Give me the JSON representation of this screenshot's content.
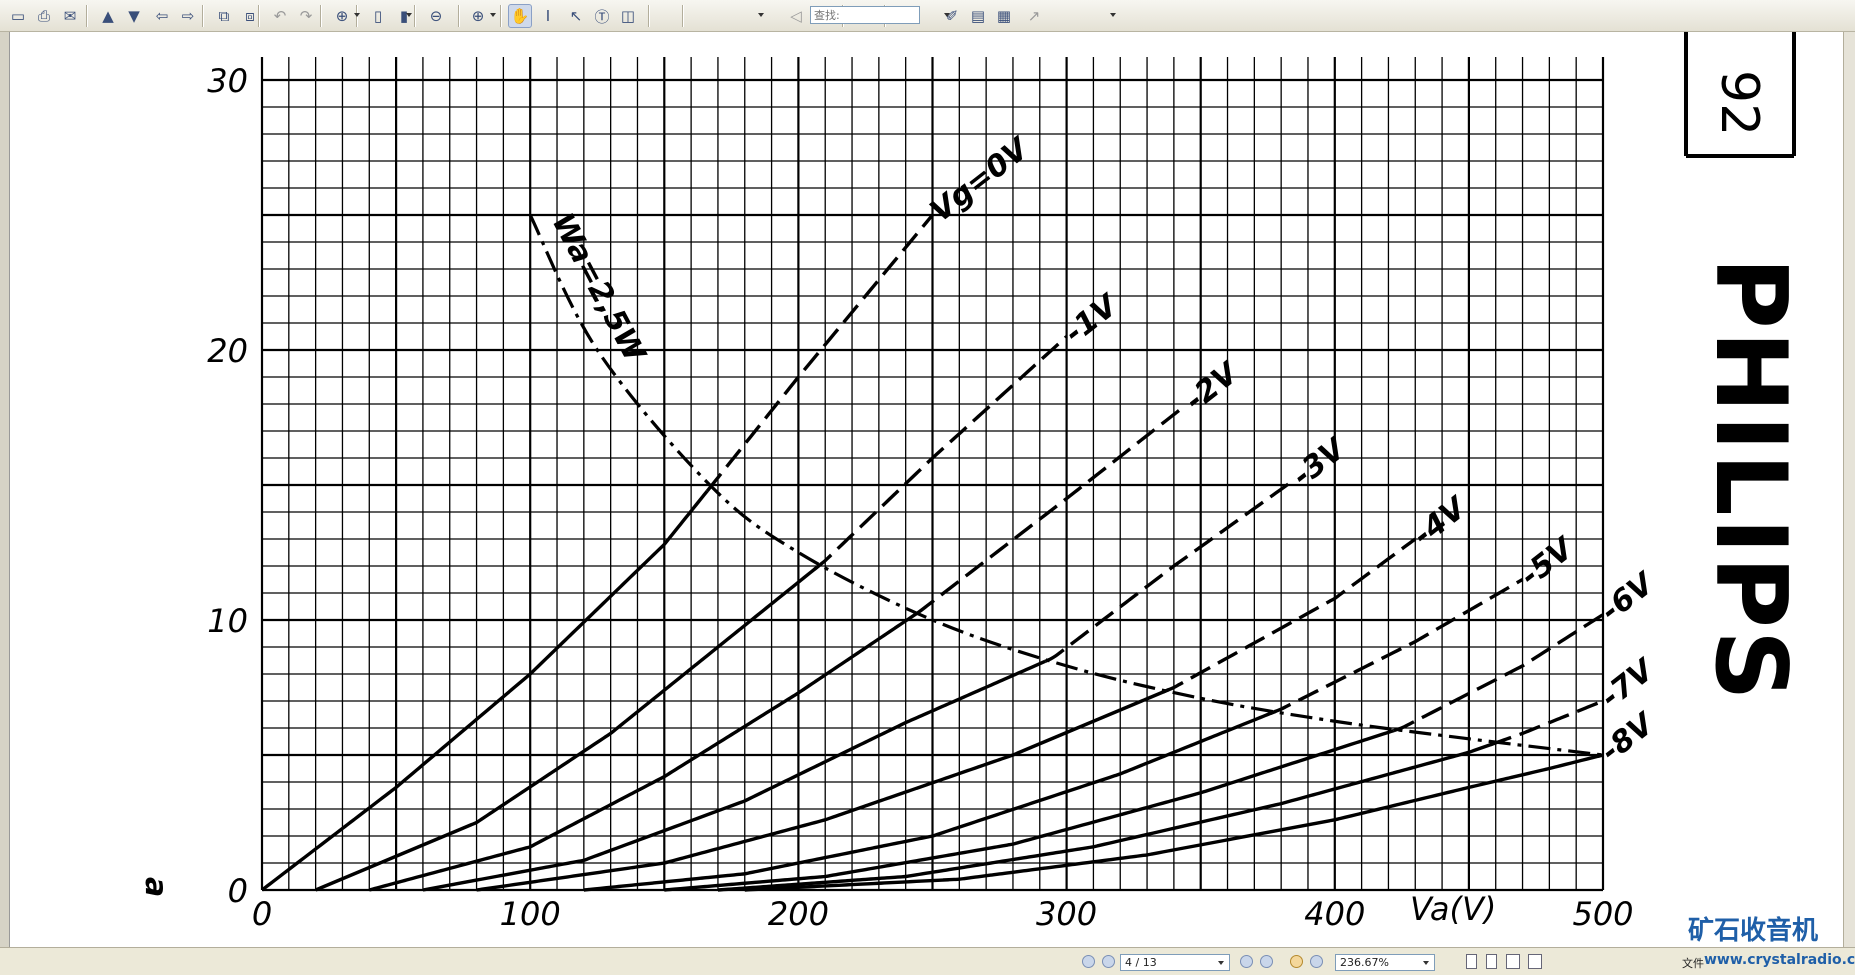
{
  "toolbar": {
    "search_placeholder": "查找:",
    "icons": [
      "save-icon",
      "print-icon",
      "email-icon",
      "page-up-icon",
      "page-down-icon",
      "back-icon",
      "forward-icon",
      "insert-pages-icon",
      "extract-pages-icon",
      "undo-icon",
      "redo-icon",
      "zoom-in-icon",
      "fit-page-icon",
      "fit-width-icon",
      "zoom-out-icon",
      "zoom-plus-icon",
      "hand-tool-icon",
      "select-text-icon",
      "select-image-icon",
      "text-box-icon",
      "snapshot-icon",
      "find-previous-icon",
      "find-next-icon",
      "search-icon",
      "comment-icon",
      "highlight-icon",
      "pencil-icon",
      "note-icon",
      "stamp-icon",
      "arrow-icon"
    ]
  },
  "statusbar": {
    "page": "4 / 13",
    "zoom": "236.67%",
    "left_text": "文件"
  },
  "watermark": {
    "name": "矿石收音机",
    "url": "www.crystalradio.cn",
    "color": "#1f5fa8"
  },
  "document": {
    "page_number": "92",
    "brand": "PHILIPS",
    "colors": {
      "ink": "#000000",
      "paper": "#ffffff"
    }
  },
  "chart_data": {
    "type": "line",
    "x_ticks": [
      "0",
      "100",
      "200",
      "300",
      "400",
      "500"
    ],
    "y_ticks": [
      "0",
      "10",
      "20",
      "30"
    ],
    "xlabel": "Va(V)",
    "ylabel": "a",
    "xlim": [
      0,
      500
    ],
    "ylim": [
      0,
      30
    ],
    "grid": true,
    "curve_style": "solid below power limit, dashed above",
    "series": [
      {
        "name": "Vg=0V",
        "x": [
          0,
          50,
          100,
          150,
          167,
          200,
          250
        ],
        "y": [
          0,
          3.8,
          8.0,
          12.8,
          14.9,
          19.0,
          25.0
        ]
      },
      {
        "name": "-1V",
        "x": [
          20,
          80,
          130,
          180,
          210,
          250,
          300
        ],
        "y": [
          0,
          2.5,
          5.8,
          9.8,
          12.2,
          16.0,
          20.5
        ]
      },
      {
        "name": "-2V",
        "x": [
          40,
          100,
          150,
          200,
          245,
          300,
          345
        ],
        "y": [
          0,
          1.6,
          4.2,
          7.3,
          10.3,
          14.5,
          18.0
        ]
      },
      {
        "name": "-3V",
        "x": [
          60,
          120,
          180,
          240,
          295,
          340,
          385
        ],
        "y": [
          0,
          1.1,
          3.3,
          6.2,
          8.6,
          12.0,
          15.2
        ]
      },
      {
        "name": "-4V",
        "x": [
          80,
          150,
          210,
          280,
          340,
          400,
          430
        ],
        "y": [
          0,
          1.0,
          2.6,
          5.0,
          7.5,
          10.8,
          13.0
        ]
      },
      {
        "name": "-5V",
        "x": [
          120,
          180,
          250,
          320,
          380,
          430,
          470
        ],
        "y": [
          0,
          0.6,
          2.0,
          4.3,
          6.7,
          9.2,
          11.5
        ]
      },
      {
        "name": "-6V",
        "x": [
          150,
          210,
          280,
          350,
          425,
          470,
          500
        ],
        "y": [
          0,
          0.5,
          1.7,
          3.6,
          6.0,
          8.3,
          10.2
        ]
      },
      {
        "name": "-7V",
        "x": [
          170,
          240,
          310,
          380,
          450,
          470,
          500
        ],
        "y": [
          0,
          0.5,
          1.6,
          3.2,
          5.1,
          5.8,
          7.0
        ]
      },
      {
        "name": "-8V",
        "x": [
          180,
          260,
          330,
          400,
          450,
          480,
          500
        ],
        "y": [
          0,
          0.4,
          1.3,
          2.6,
          3.8,
          4.5,
          5.0
        ]
      },
      {
        "name": "Wa=2,5W",
        "x": [
          100,
          125,
          167,
          200,
          250,
          300,
          350,
          400,
          450,
          500
        ],
        "y": [
          25,
          20,
          15,
          12.5,
          10,
          8.3,
          7.1,
          6.25,
          5.6,
          5.0
        ]
      }
    ]
  }
}
